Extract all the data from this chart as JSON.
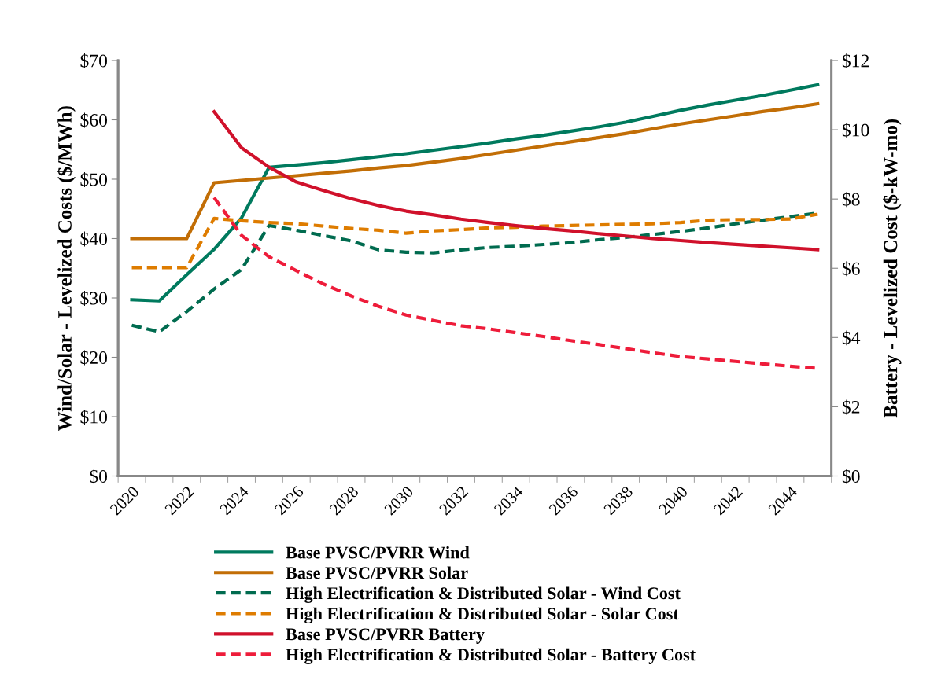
{
  "chart_data": {
    "type": "line",
    "ylabel": "Wind/Solar - Levelized Costs ($/MWh)",
    "y2label": "Battery - Levelized Cost ($-kW-mo)",
    "categories": [
      "2020",
      null,
      "2022",
      null,
      "2024",
      null,
      "2026",
      null,
      "2028",
      null,
      "2030",
      null,
      "2032",
      null,
      "2034",
      null,
      "2036",
      null,
      "2038",
      null,
      "2040",
      null,
      "2042",
      null,
      "2044",
      null
    ],
    "ylim": [
      0,
      70
    ],
    "yticks": [
      {
        "value": 0,
        "label": "$0"
      },
      {
        "value": 10,
        "label": "$10"
      },
      {
        "value": 20,
        "label": "$20"
      },
      {
        "value": 30,
        "label": "$30"
      },
      {
        "value": 40,
        "label": "$40"
      },
      {
        "value": 50,
        "label": "$50"
      },
      {
        "value": 60,
        "label": "$60"
      },
      {
        "value": 70,
        "label": "$70"
      }
    ],
    "y2lim": [
      0,
      12
    ],
    "y2ticks": [
      {
        "value": 0,
        "label": "$0"
      },
      {
        "value": 2,
        "label": "$2"
      },
      {
        "value": 4,
        "label": "$4"
      },
      {
        "value": 6,
        "label": "$6"
      },
      {
        "value": 8,
        "label": "$8"
      },
      {
        "value": 10,
        "label": "$10"
      },
      {
        "value": 12,
        "label": "$12"
      }
    ],
    "grid": false,
    "legend": "bottom",
    "series": [
      {
        "name": "Base PVSC/PVRR Wind",
        "color": "#007a5e",
        "line_style": "solid",
        "values": [
          29.7,
          29.5,
          33.9,
          38.2,
          43.5,
          52.0,
          52.4,
          52.8,
          53.3,
          53.8,
          54.3,
          54.9,
          55.5,
          56.1,
          56.8,
          57.4,
          58.1,
          58.8,
          59.6,
          60.6,
          61.6,
          62.5,
          63.3,
          64.1,
          65.0,
          65.9
        ]
      },
      {
        "name": "Base PVSC/PVRR Solar",
        "color": "#c26e06",
        "line_style": "solid",
        "values": [
          40.0,
          40.0,
          40.0,
          49.4,
          49.8,
          50.2,
          50.6,
          51.0,
          51.4,
          51.9,
          52.3,
          52.9,
          53.5,
          54.2,
          54.9,
          55.6,
          56.3,
          57.0,
          57.7,
          58.5,
          59.3,
          60.0,
          60.7,
          61.4,
          62.0,
          62.7
        ]
      },
      {
        "name": "High Electrification & Distributed Solar - Wind Cost",
        "color": "#006b4f",
        "line_style": "dashed",
        "values": [
          25.4,
          24.3,
          27.7,
          31.5,
          34.8,
          42.2,
          41.4,
          40.5,
          39.6,
          38.1,
          37.7,
          37.6,
          38.1,
          38.5,
          38.7,
          39.0,
          39.3,
          39.8,
          40.2,
          40.7,
          41.2,
          41.8,
          42.5,
          43.1,
          43.7,
          44.3
        ]
      },
      {
        "name": "High Electrification & Distributed Solar - Solar Cost",
        "color": "#de7c00",
        "line_style": "dashed",
        "values": [
          35.1,
          35.1,
          35.1,
          43.4,
          43.0,
          42.7,
          42.5,
          42.1,
          41.7,
          41.4,
          40.9,
          41.3,
          41.5,
          41.8,
          41.9,
          42.1,
          42.2,
          42.3,
          42.4,
          42.5,
          42.7,
          43.1,
          43.2,
          43.2,
          43.3,
          44.1
        ]
      },
      {
        "name": "Base PVSC/PVRR Battery",
        "color": "#d0112b",
        "line_style": "solid",
        "axis": "y2",
        "values": [
          null,
          null,
          null,
          10.52,
          9.48,
          8.92,
          8.49,
          8.24,
          8.01,
          7.81,
          7.65,
          7.54,
          7.42,
          7.32,
          7.23,
          7.15,
          7.08,
          7.0,
          6.93,
          6.86,
          6.8,
          6.74,
          6.69,
          6.64,
          6.59,
          6.54
        ]
      },
      {
        "name": "High Electrification & Distributed Solar - Battery Cost",
        "color": "#ee1c3a",
        "line_style": "dashed",
        "axis": "y2",
        "values": [
          null,
          null,
          null,
          8.04,
          6.95,
          6.33,
          5.93,
          5.54,
          5.2,
          4.9,
          4.65,
          4.49,
          4.34,
          4.25,
          4.14,
          4.03,
          3.91,
          3.8,
          3.68,
          3.56,
          3.45,
          3.38,
          3.31,
          3.24,
          3.17,
          3.11
        ]
      }
    ]
  }
}
